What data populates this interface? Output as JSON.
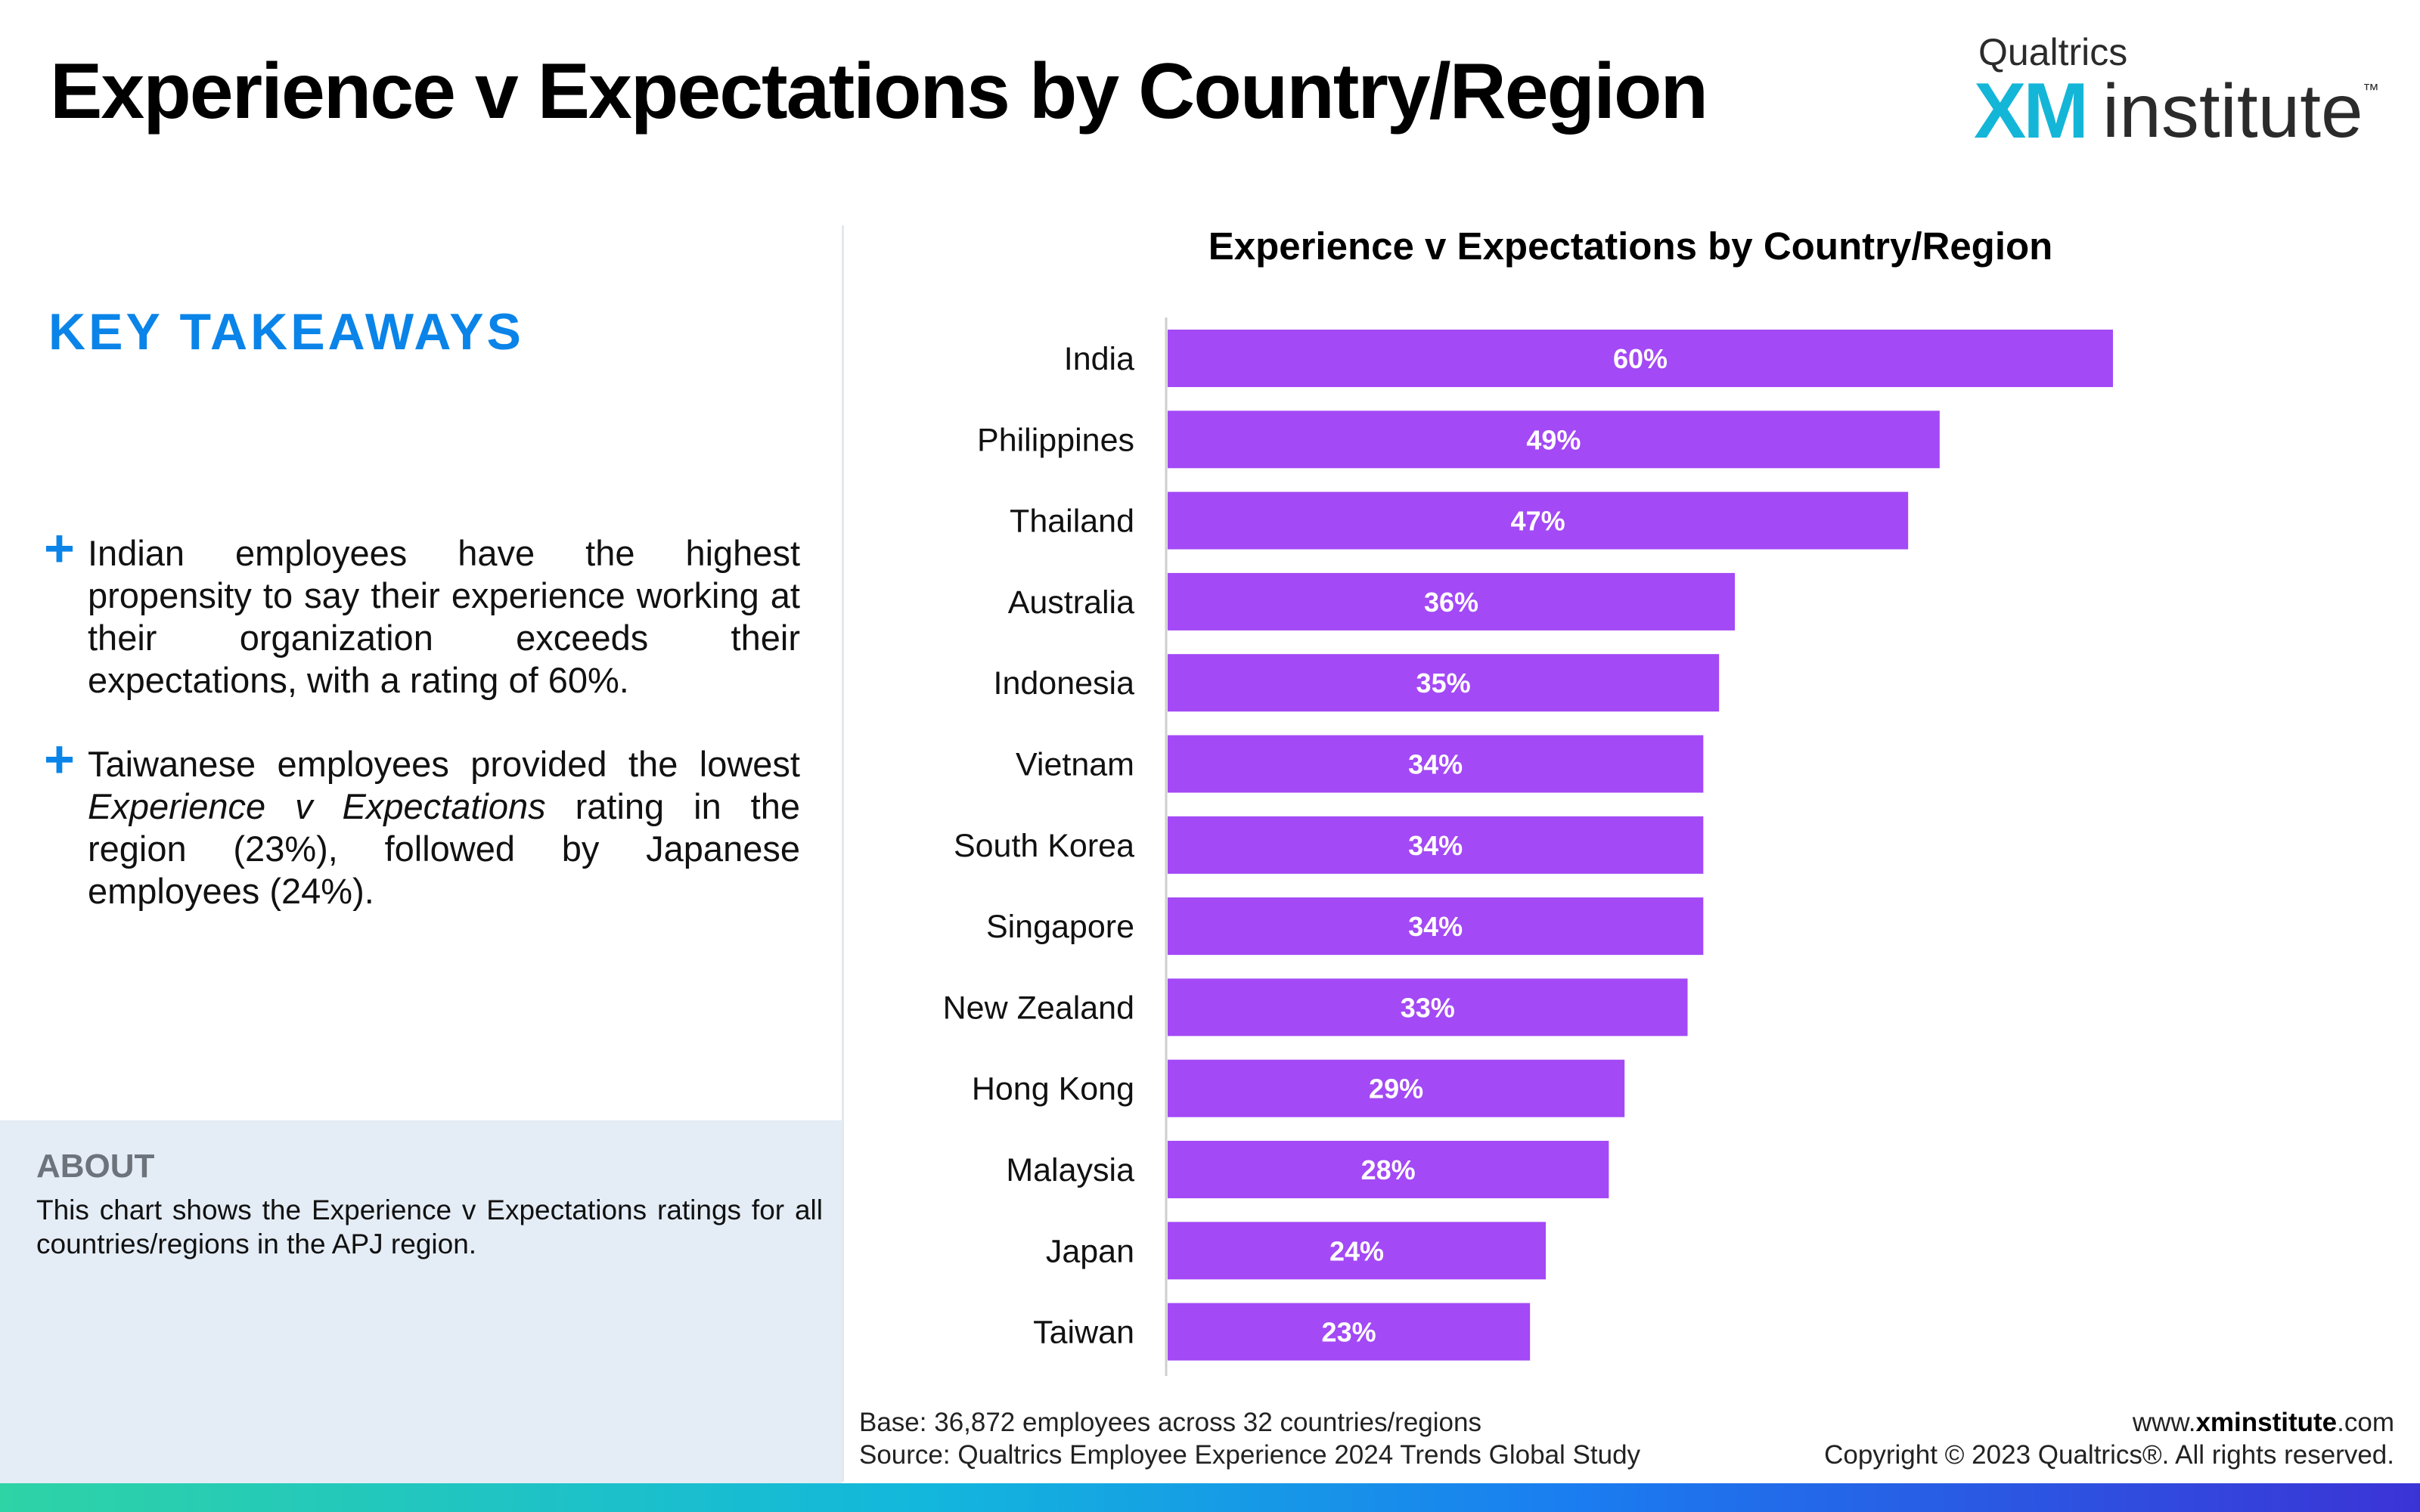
{
  "header": {
    "title": "Experience v Expectations by Country/Region",
    "logo": {
      "brand": "Qualtrics",
      "xm": "XM",
      "word": "institute",
      "tm": "™"
    }
  },
  "takeaways": {
    "heading": "KEY TAKEAWAYS",
    "items": [
      {
        "before": "Indian employees have the highest propensity to say their experience working at their organization exceeds their expectations, with a rating of 60%.",
        "italic": "",
        "after": ""
      },
      {
        "before": "Taiwanese employees provided the lowest ",
        "italic": "Experience v Expectations",
        "after": " rating in the region (23%), followed by Japanese employees (24%)."
      }
    ]
  },
  "about": {
    "heading": "ABOUT",
    "text": "This chart shows the Experience v Expectations ratings for all countries/regions in the APJ region."
  },
  "chart_data": {
    "type": "bar",
    "orientation": "horizontal",
    "title": "Experience v Expectations by Country/Region",
    "categories": [
      "India",
      "Philippines",
      "Thailand",
      "Australia",
      "Indonesia",
      "Vietnam",
      "South Korea",
      "Singapore",
      "New Zealand",
      "Hong Kong",
      "Malaysia",
      "Japan",
      "Taiwan"
    ],
    "values": [
      60,
      49,
      47,
      36,
      35,
      34,
      34,
      34,
      33,
      29,
      28,
      24,
      23
    ],
    "value_labels": [
      "60%",
      "49%",
      "47%",
      "36%",
      "35%",
      "34%",
      "34%",
      "34%",
      "33%",
      "29%",
      "28%",
      "24%",
      "23%"
    ],
    "xlim": [
      0,
      60
    ],
    "bar_color": "#a349f5",
    "grid": false,
    "legend": "none"
  },
  "footer": {
    "base": "Base: 36,872 employees across 32 countries/regions",
    "source": "Source: Qualtrics Employee Experience 2024 Trends Global Study",
    "site_prefix": "www.",
    "site_bold": "xminstitute",
    "site_suffix": ".com",
    "copyright": "Copyright © 2023 Qualtrics®. All rights reserved."
  }
}
